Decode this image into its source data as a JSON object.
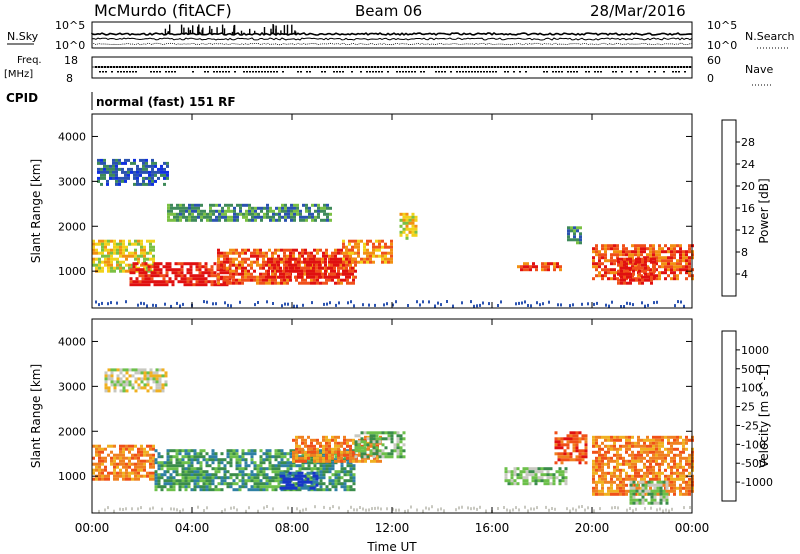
{
  "header": {
    "title": "McMurdo (fitACF)",
    "beam": "Beam 06",
    "date": "28/Mar/2016"
  },
  "top_panels": {
    "nsky_label": "N.Sky",
    "nsky_ticks": [
      "10^5",
      "10^0"
    ],
    "nsearch_label": "N.Search",
    "nsearch_ticks": [
      "10^5",
      "10^0"
    ],
    "freq_label_1": "Freq.",
    "freq_label_2": "[MHz]",
    "freq_ticks": [
      "18",
      "8"
    ],
    "nave_label": "Nave",
    "nave_ticks": [
      "60",
      "0"
    ],
    "cpid_label": "CPID",
    "cpid_text": "normal (fast) 151 RF"
  },
  "chart_data": [
    {
      "type": "heatmap",
      "name": "power",
      "ylabel": "Slant Range [km]",
      "yticks": [
        "4000",
        "3000",
        "2000",
        "1000"
      ],
      "ylim": [
        180,
        4500
      ],
      "colorbar_label": "Power [dB]",
      "colorbar_ticks": [
        "28",
        "24",
        "20",
        "16",
        "12",
        "8",
        "4"
      ],
      "colors": [
        "#1030e0",
        "#2a52b0",
        "#3f8a5a",
        "#7ac043",
        "#f2d21a",
        "#f29012",
        "#f0501a",
        "#e01010"
      ],
      "blobs": [
        {
          "t": [
            0.0,
            2.5
          ],
          "r": [
            1000,
            1700
          ],
          "v": 4
        },
        {
          "t": [
            1.5,
            5.5
          ],
          "r": [
            700,
            1200
          ],
          "v": 7
        },
        {
          "t": [
            5.0,
            10.5
          ],
          "r": [
            700,
            1500
          ],
          "v": 6
        },
        {
          "t": [
            7.0,
            10.5
          ],
          "r": [
            850,
            1300
          ],
          "v": 7
        },
        {
          "t": [
            10.0,
            12.0
          ],
          "r": [
            1200,
            1700
          ],
          "v": 5
        },
        {
          "t": [
            0.2,
            3.0
          ],
          "r": [
            2900,
            3500
          ],
          "v": 1
        },
        {
          "t": [
            3.0,
            9.5
          ],
          "r": [
            2100,
            2500
          ],
          "v": 2
        },
        {
          "t": [
            12.3,
            13.0
          ],
          "r": [
            1700,
            2300
          ],
          "v": 4
        },
        {
          "t": [
            17.0,
            18.8
          ],
          "r": [
            1000,
            1200
          ],
          "v": 6
        },
        {
          "t": [
            19.0,
            19.6
          ],
          "r": [
            1650,
            2000
          ],
          "v": 2
        },
        {
          "t": [
            20.0,
            24.0
          ],
          "r": [
            800,
            1600
          ],
          "v": 6
        },
        {
          "t": [
            21.0,
            22.5
          ],
          "r": [
            750,
            1300
          ],
          "v": 7
        }
      ]
    },
    {
      "type": "heatmap",
      "name": "velocity",
      "ylabel": "Slant Range [km]",
      "xlabel": "Time UT",
      "xticks": [
        "00:00",
        "04:00",
        "08:00",
        "12:00",
        "16:00",
        "20:00",
        "00:00"
      ],
      "xlim": [
        0,
        24
      ],
      "yticks": [
        "4000",
        "3000",
        "2000",
        "1000"
      ],
      "ylim": [
        180,
        4500
      ],
      "colorbar_label": "Velocity [m s^-1]",
      "colorbar_ticks": [
        "1000",
        "500",
        "100",
        "25",
        "-25",
        "-100",
        "-500",
        "-1000"
      ],
      "colors": [
        "#1836c8",
        "#2e7fa4",
        "#3a8c4a",
        "#6cc04a",
        "#c8c8c0",
        "#f0b020",
        "#f08020",
        "#f05018",
        "#e01010"
      ],
      "blobs": [
        {
          "t": [
            0.0,
            2.5
          ],
          "r": [
            900,
            1700
          ],
          "v": 6
        },
        {
          "t": [
            2.5,
            10.5
          ],
          "r": [
            700,
            1600
          ],
          "v": 2
        },
        {
          "t": [
            7.5,
            9.0
          ],
          "r": [
            700,
            1100
          ],
          "v": 0
        },
        {
          "t": [
            8.0,
            11.5
          ],
          "r": [
            1300,
            1900
          ],
          "v": 6
        },
        {
          "t": [
            0.5,
            3.0
          ],
          "r": [
            2900,
            3400
          ],
          "v": 4
        },
        {
          "t": [
            10.5,
            12.5
          ],
          "r": [
            1400,
            2000
          ],
          "v": 3
        },
        {
          "t": [
            16.5,
            19.0
          ],
          "r": [
            800,
            1200
          ],
          "v": 3
        },
        {
          "t": [
            18.5,
            19.8
          ],
          "r": [
            1300,
            2000
          ],
          "v": 7
        },
        {
          "t": [
            20.0,
            24.0
          ],
          "r": [
            600,
            1900
          ],
          "v": 6
        },
        {
          "t": [
            21.5,
            23.0
          ],
          "r": [
            400,
            900
          ],
          "v": 3
        }
      ]
    }
  ]
}
